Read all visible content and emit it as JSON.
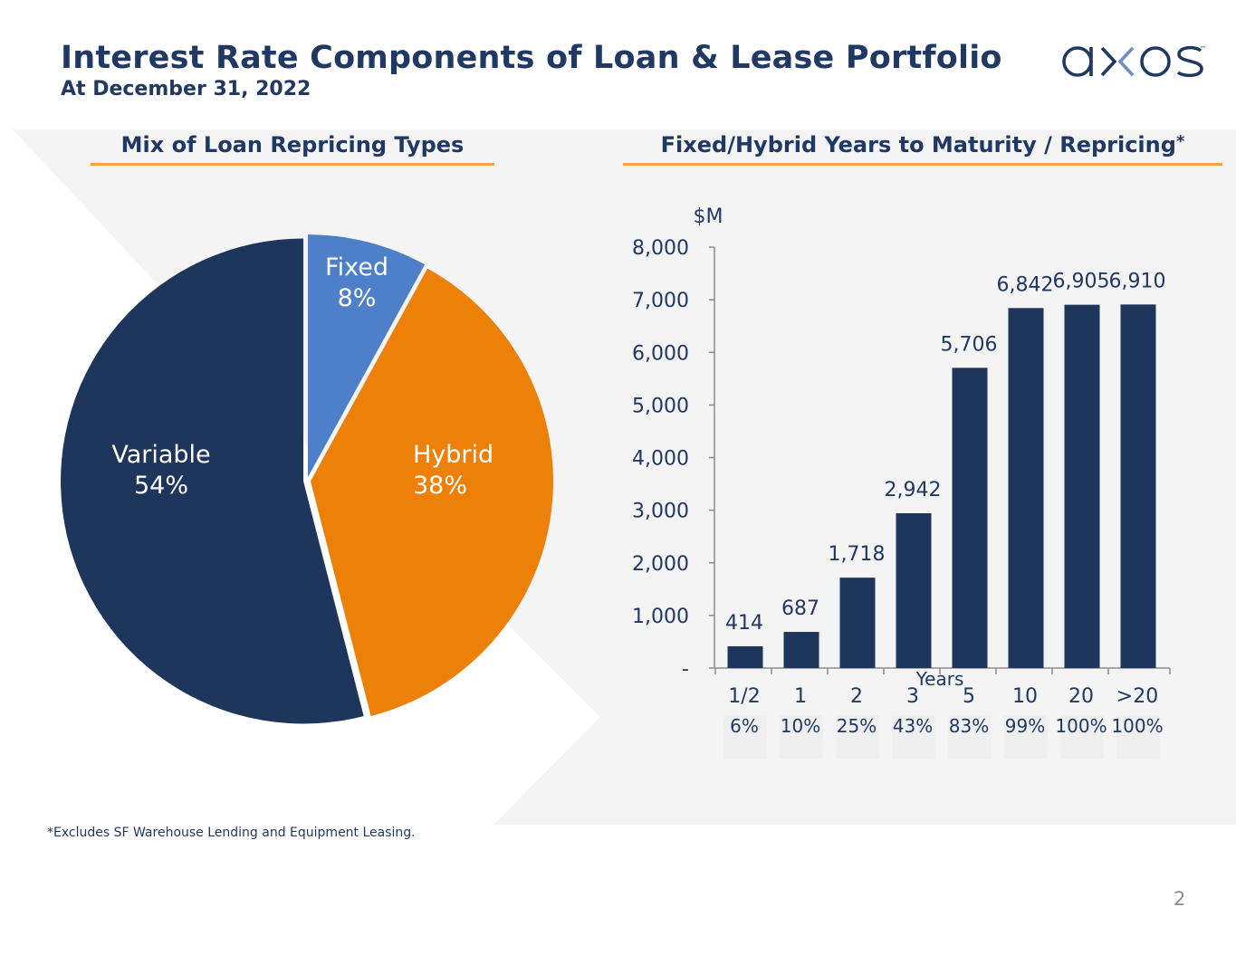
{
  "header": {
    "title": "Interest Rate Components of Loan & Lease Portfolio",
    "subtitle": "At December 31, 2022",
    "logo_text": "axos",
    "logo_tm": "™"
  },
  "left_panel": {
    "title": "Mix of Loan Repricing Types"
  },
  "right_panel": {
    "title": "Fixed/Hybrid Years to Maturity / Repricing",
    "title_asterisk": "*"
  },
  "chart_data": [
    {
      "type": "pie",
      "title": "Mix of Loan Repricing Types",
      "slices": [
        {
          "label": "Fixed",
          "value": 8,
          "display": "8%",
          "color": "#4e7fc9"
        },
        {
          "label": "Hybrid",
          "value": 38,
          "display": "38%",
          "color": "#ed8008"
        },
        {
          "label": "Variable",
          "value": 54,
          "display": "54%",
          "color": "#1f365c"
        }
      ]
    },
    {
      "type": "bar",
      "title": "Fixed/Hybrid Years to Maturity / Repricing*",
      "ylabel": "$M",
      "xlabel": "Years",
      "ylim": [
        0,
        8000
      ],
      "yticks": [
        0,
        1000,
        2000,
        3000,
        4000,
        5000,
        6000,
        7000,
        8000
      ],
      "ytick_labels": [
        "-",
        "1,000",
        "2,000",
        "3,000",
        "4,000",
        "5,000",
        "6,000",
        "7,000",
        "8,000"
      ],
      "categories": [
        "1/2",
        "1",
        "2",
        "3",
        "5",
        "10",
        "20",
        ">20"
      ],
      "values": [
        414,
        687,
        1718,
        2942,
        5706,
        6842,
        6905,
        6910
      ],
      "value_labels": [
        "414",
        "687",
        "1,718",
        "2,942",
        "5,706",
        "6,842",
        "6,905",
        "6,910"
      ],
      "cumulative_percent_labels": [
        "6%",
        "10%",
        "25%",
        "43%",
        "83%",
        "99%",
        "100%",
        "100%"
      ],
      "bar_color": "#1f365c"
    }
  ],
  "footnote": "*Excludes SF Warehouse Lending and Equipment Leasing.",
  "page_number": "2",
  "colors": {
    "navy": "#1f3864",
    "orange_rule": "#f4a24b",
    "panel_bg": "#f4f4f4"
  }
}
